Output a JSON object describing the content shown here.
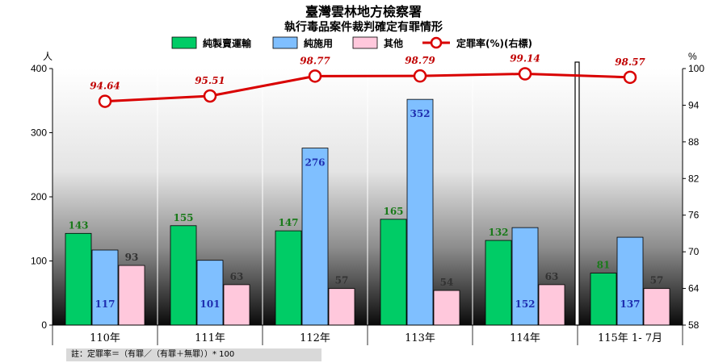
{
  "title": "臺灣雲林地方檢察署",
  "subtitle": "執行毒品案件裁判確定有罪情形",
  "left_unit": "人",
  "right_unit": "%",
  "note": "註：定罪率＝（有罪／（有罪＋無罪））* 100",
  "colors": {
    "series1": "#00cc66",
    "series2": "#7fbfff",
    "series3": "#ffc8dc",
    "rate": "#d90000"
  },
  "chart_data": {
    "type": "bar",
    "categories": [
      "110年",
      "111年",
      "112年",
      "113年",
      "114年",
      "115年 1- 7月"
    ],
    "series": [
      {
        "name": "純製賣運輸",
        "values": [
          143,
          155,
          147,
          165,
          132,
          81
        ]
      },
      {
        "name": "純施用",
        "values": [
          117,
          101,
          276,
          352,
          152,
          137
        ]
      },
      {
        "name": "其他",
        "values": [
          93,
          63,
          57,
          54,
          63,
          57
        ]
      }
    ],
    "line_series": {
      "name": "定罪率(%)(右標)",
      "axis": "right",
      "values": [
        94.64,
        95.51,
        98.77,
        98.79,
        99.14,
        98.57
      ]
    },
    "ylim": [
      0,
      400
    ],
    "yticks": [
      0,
      100,
      200,
      300,
      400
    ],
    "y2lim": [
      58,
      100
    ],
    "y2ticks": [
      58,
      64,
      70,
      76,
      82,
      88,
      94,
      100
    ],
    "legend_position": "top",
    "grid": false
  }
}
